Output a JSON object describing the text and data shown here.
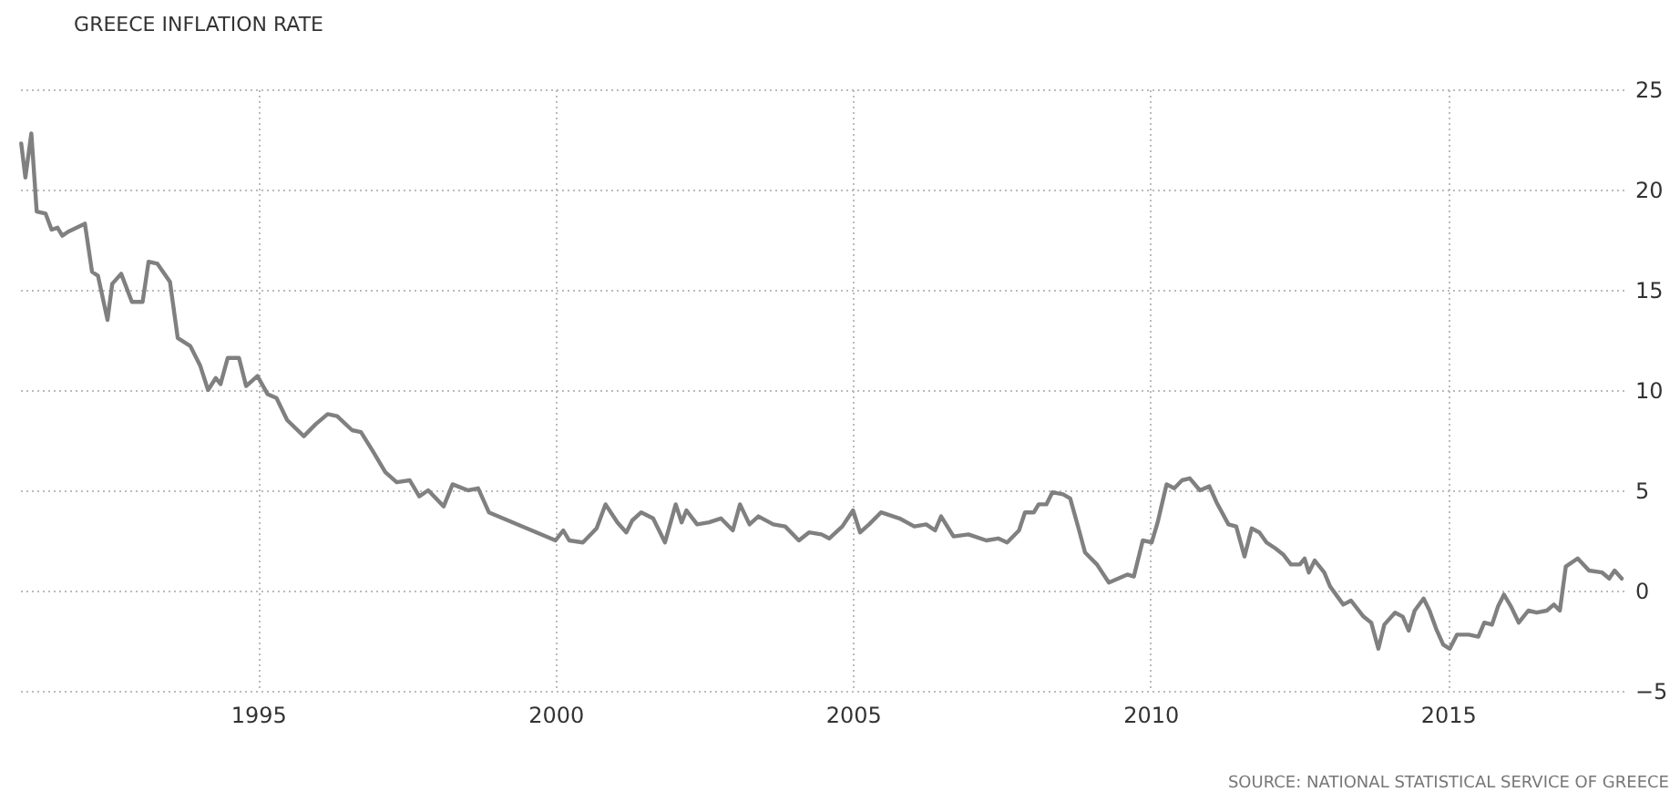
{
  "chart_data": {
    "type": "line",
    "title": "GREECE INFLATION RATE",
    "annotations": [
      "SOURCE: NATIONAL STATISTICAL SERVICE OF GREECE"
    ],
    "x": [
      1991.02,
      1991.09,
      1991.19,
      1991.28,
      1991.43,
      1991.53,
      1991.63,
      1991.71,
      1991.81,
      1992.09,
      1992.21,
      1992.31,
      1992.47,
      1992.55,
      1992.7,
      1992.88,
      1993.06,
      1993.16,
      1993.31,
      1993.52,
      1993.65,
      1993.86,
      1994.03,
      1994.16,
      1994.29,
      1994.37,
      1994.49,
      1994.68,
      1994.8,
      1994.99,
      1995.16,
      1995.31,
      1995.49,
      1995.77,
      1995.97,
      1996.17,
      1996.33,
      1996.58,
      1996.73,
      1996.94,
      1997.14,
      1997.33,
      1997.55,
      1997.71,
      1997.86,
      1998.12,
      1998.27,
      1998.53,
      1998.7,
      1998.88,
      2000.0,
      2000.13,
      2000.23,
      2000.46,
      2000.69,
      2000.84,
      2001.04,
      2001.19,
      2001.29,
      2001.44,
      2001.64,
      2001.84,
      2002.02,
      2002.12,
      2002.2,
      2002.38,
      2002.58,
      2002.78,
      2002.98,
      2003.1,
      2003.26,
      2003.41,
      2003.66,
      2003.86,
      2004.09,
      2004.26,
      2004.47,
      2004.6,
      2004.82,
      2005.0,
      2005.12,
      2005.27,
      2005.47,
      2005.78,
      2006.03,
      2006.23,
      2006.38,
      2006.48,
      2006.69,
      2006.94,
      2007.24,
      2007.44,
      2007.59,
      2007.79,
      2007.89,
      2008.04,
      2008.12,
      2008.25,
      2008.35,
      2008.53,
      2008.65,
      2008.8,
      2008.9,
      2009.1,
      2009.3,
      2009.61,
      2009.72,
      2009.87,
      2010.02,
      2010.12,
      2010.27,
      2010.4,
      2010.53,
      2010.66,
      2010.83,
      2010.99,
      2011.11,
      2011.31,
      2011.44,
      2011.58,
      2011.7,
      2011.83,
      2011.95,
      2012.1,
      2012.23,
      2012.36,
      2012.51,
      2012.59,
      2012.66,
      2012.76,
      2012.92,
      2013.02,
      2013.24,
      2013.37,
      2013.58,
      2013.71,
      2013.83,
      2013.93,
      2014.11,
      2014.24,
      2014.34,
      2014.44,
      2014.59,
      2014.69,
      2014.8,
      2014.92,
      2015.03,
      2015.15,
      2015.35,
      2015.51,
      2015.61,
      2015.74,
      2015.84,
      2015.94,
      2016.06,
      2016.19,
      2016.35,
      2016.49,
      2016.66,
      2016.78,
      2016.88,
      2016.98,
      2017.18,
      2017.37,
      2017.59,
      2017.71,
      2017.8,
      2017.92
    ],
    "series": [
      {
        "color": "#808080",
        "values": [
          22.3,
          20.6,
          22.8,
          18.9,
          18.8,
          18.0,
          18.1,
          17.7,
          17.9,
          18.3,
          15.9,
          15.7,
          13.5,
          15.3,
          15.8,
          14.4,
          14.4,
          16.4,
          16.3,
          15.4,
          12.6,
          12.2,
          11.2,
          10.0,
          10.6,
          10.3,
          11.6,
          11.6,
          10.2,
          10.7,
          9.8,
          9.6,
          8.5,
          7.7,
          8.3,
          8.8,
          8.7,
          8.0,
          7.9,
          6.9,
          5.9,
          5.4,
          5.5,
          4.7,
          5.0,
          4.2,
          5.3,
          5.0,
          5.1,
          3.9,
          2.5,
          3.0,
          2.5,
          2.4,
          3.1,
          4.3,
          3.4,
          2.9,
          3.5,
          3.9,
          3.6,
          2.4,
          4.3,
          3.4,
          4.0,
          3.3,
          3.4,
          3.6,
          3.0,
          4.3,
          3.3,
          3.7,
          3.3,
          3.2,
          2.5,
          2.9,
          2.8,
          2.6,
          3.2,
          4.0,
          2.9,
          3.3,
          3.9,
          3.6,
          3.2,
          3.3,
          3.0,
          3.7,
          2.7,
          2.8,
          2.5,
          2.6,
          2.4,
          3.0,
          3.9,
          3.9,
          4.3,
          4.3,
          4.9,
          4.8,
          4.6,
          3.0,
          1.9,
          1.3,
          0.4,
          0.8,
          0.7,
          2.5,
          2.4,
          3.4,
          5.3,
          5.1,
          5.5,
          5.6,
          5.0,
          5.2,
          4.4,
          3.3,
          3.2,
          1.7,
          3.1,
          2.9,
          2.4,
          2.1,
          1.8,
          1.3,
          1.3,
          1.6,
          0.9,
          1.5,
          0.9,
          0.2,
          -0.7,
          -0.5,
          -1.3,
          -1.6,
          -2.9,
          -1.7,
          -1.1,
          -1.3,
          -2.0,
          -1.0,
          -0.4,
          -1.0,
          -1.9,
          -2.7,
          -2.9,
          -2.2,
          -2.2,
          -2.3,
          -1.6,
          -1.7,
          -0.8,
          -0.2,
          -0.8,
          -1.6,
          -1.0,
          -1.1,
          -1.0,
          -0.7,
          -1.0,
          1.2,
          1.6,
          1.0,
          0.9,
          0.6,
          1.0,
          0.6
        ]
      }
    ],
    "xlim": [
      1991,
      2017.95
    ],
    "xticks": [
      1995,
      2000,
      2005,
      2010,
      2015
    ],
    "ylim": [
      -5,
      25
    ],
    "yticks": [
      -5,
      0,
      5,
      10,
      15,
      20,
      25
    ],
    "grid": true,
    "line_style": "solid",
    "marker": "none",
    "legend": false
  }
}
